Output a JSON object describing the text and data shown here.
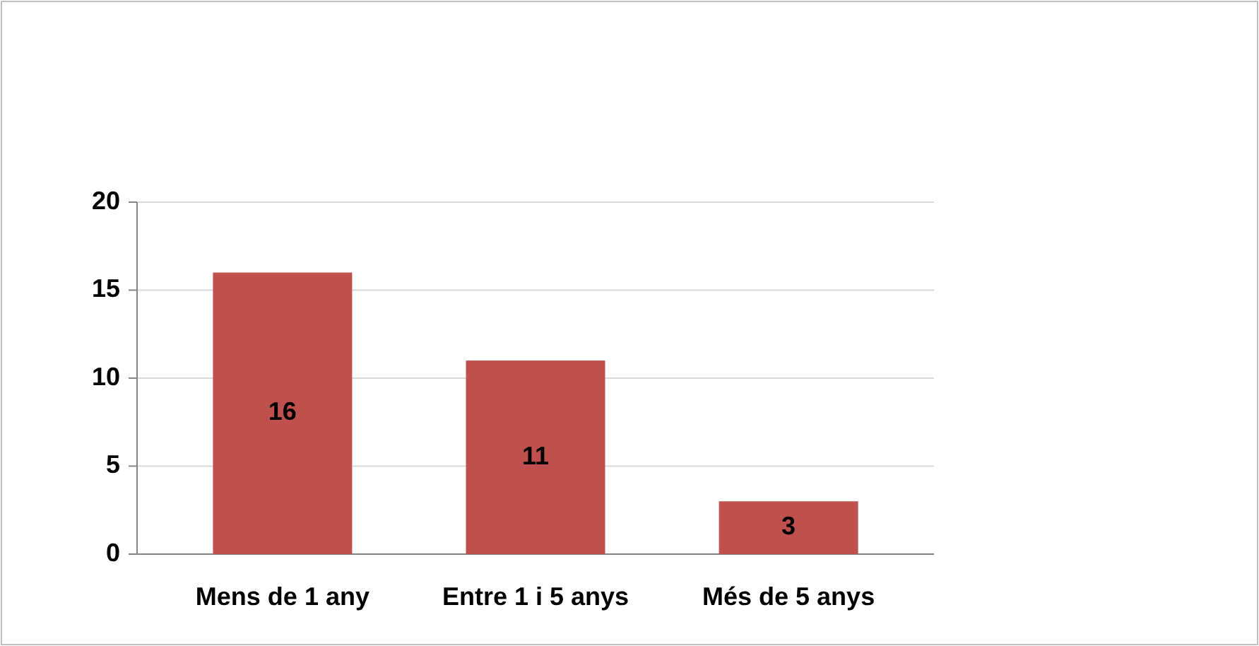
{
  "chart_data": {
    "type": "bar",
    "categories": [
      "Mens de 1 any",
      "Entre 1 i 5 anys",
      "Més de 5 anys"
    ],
    "values": [
      16,
      11,
      3
    ],
    "color": "#c0504d",
    "ylim": [
      0,
      20
    ],
    "yticks": [
      0,
      5,
      10,
      15,
      20
    ],
    "grid": "y",
    "data_labels": true
  }
}
